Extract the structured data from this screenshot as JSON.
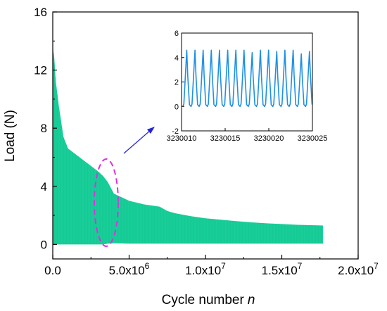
{
  "chart_data": [
    {
      "type": "area",
      "role": "main",
      "xlabel": "Cycle number",
      "xlabel_var": "n",
      "ylabel": "Load (N)",
      "xlim": [
        0,
        20000000
      ],
      "ylim": [
        -1,
        16
      ],
      "xticks": [
        0,
        5000000,
        10000000,
        15000000,
        20000000
      ],
      "xtick_labels": [
        "0.0",
        "5.0x10",
        "1.0x10",
        "1.5x10",
        "2.0x10"
      ],
      "xtick_exponents": [
        "",
        "6",
        "7",
        "7",
        "7"
      ],
      "yticks": [
        0,
        4,
        8,
        12,
        16
      ],
      "ytick_labels": [
        "0",
        "4",
        "8",
        "12",
        "16"
      ],
      "fill_color": "#1bd39c",
      "series": [
        {
          "x": [
            0,
            100000,
            200000,
            400000,
            700000,
            1000000,
            1500000,
            2000000,
            2500000,
            3000000,
            3300000,
            3600000,
            4000000,
            5000000,
            6000000,
            7000000,
            7500000,
            8000000,
            9000000,
            10000000,
            11000000,
            12000000,
            13000000,
            14000000,
            15000000,
            16000000,
            17700000
          ],
          "y_max": [
            13.6,
            12.8,
            11.2,
            9.5,
            7.4,
            6.6,
            6.2,
            5.8,
            5.4,
            5.0,
            4.7,
            4.3,
            3.5,
            3.0,
            2.75,
            2.6,
            2.3,
            2.15,
            1.95,
            1.8,
            1.7,
            1.6,
            1.52,
            1.45,
            1.4,
            1.35,
            1.3
          ],
          "y_min": [
            0.0,
            0.0,
            0.0,
            0.0,
            0.0,
            0.0,
            0.0,
            0.0,
            0.0,
            0.0,
            0.0,
            0.05,
            0.08,
            0.05,
            0.05,
            0.05,
            0.05,
            0.05,
            0.05,
            0.05,
            0.05,
            0.05,
            0.05,
            0.05,
            0.05,
            0.05,
            0.05
          ]
        }
      ]
    },
    {
      "type": "line",
      "role": "inset",
      "xlim": [
        3230010,
        3230025
      ],
      "ylim": [
        -2,
        6
      ],
      "xticks": [
        3230010,
        3230015,
        3230020,
        3230025
      ],
      "xtick_labels": [
        "3230010",
        "3230015",
        "3230020",
        "3230025"
      ],
      "yticks": [
        -2,
        0,
        2,
        4,
        6
      ],
      "ytick_labels": [
        "-2",
        "0",
        "2",
        "4",
        "6"
      ],
      "line_color": "#1e90e6",
      "peaks": [
        4.6,
        4.6,
        4.6,
        4.6,
        4.6,
        4.6,
        4.6,
        4.6,
        4.4,
        4.6,
        4.6,
        4.5,
        4.6,
        4.6,
        4.3,
        4.5
      ],
      "trough": 0.0
    }
  ],
  "annotations": {
    "ellipse_color": "#e030e0",
    "arrow_color": "#2222dd"
  }
}
